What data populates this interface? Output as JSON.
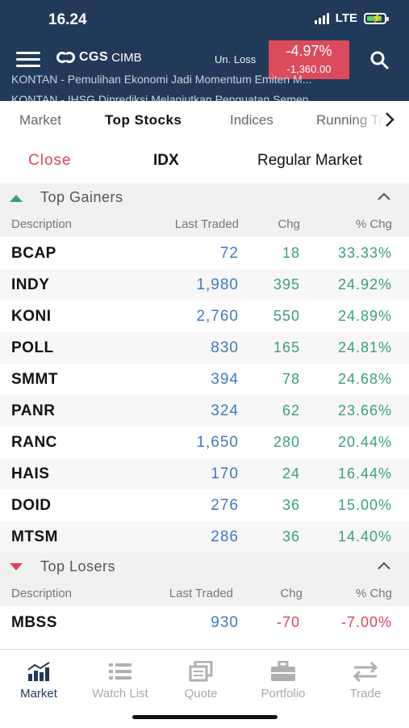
{
  "status_bar": {
    "time": "16.24",
    "network": "LTE"
  },
  "header": {
    "logo_main": "CGS",
    "logo_sub": "CIMB",
    "unrealized_label": "Un. Loss",
    "unrealized_pct": "-4.97%",
    "unrealized_value": "-1,360.00",
    "news": [
      "KONTAN - Pemulihan Ekonomi Jadi Momentum Emiten M...",
      "KONTAN - IHSG Diprediksi Melanjutkan Penguatan Semen..."
    ]
  },
  "tabs": [
    {
      "label": "Market",
      "active": false
    },
    {
      "label": "Top Stocks",
      "active": true
    },
    {
      "label": "Indices",
      "active": false
    },
    {
      "label": "Running Tr",
      "active": false
    }
  ],
  "filters": {
    "status": "Close",
    "exchange": "IDX",
    "market": "Regular Market"
  },
  "columns": {
    "description": "Description",
    "last_traded": "Last Traded",
    "chg": "Chg",
    "pct_chg": "% Chg"
  },
  "top_gainers": {
    "title": "Top Gainers",
    "rows": [
      {
        "symbol": "BCAP",
        "last": "72",
        "chg": "18",
        "pct": "33.33%"
      },
      {
        "symbol": "INDY",
        "last": "1,980",
        "chg": "395",
        "pct": "24.92%"
      },
      {
        "symbol": "KONI",
        "last": "2,760",
        "chg": "550",
        "pct": "24.89%"
      },
      {
        "symbol": "POLL",
        "last": "830",
        "chg": "165",
        "pct": "24.81%"
      },
      {
        "symbol": "SMMT",
        "last": "394",
        "chg": "78",
        "pct": "24.68%"
      },
      {
        "symbol": "PANR",
        "last": "324",
        "chg": "62",
        "pct": "23.66%"
      },
      {
        "symbol": "RANC",
        "last": "1,650",
        "chg": "280",
        "pct": "20.44%"
      },
      {
        "symbol": "HAIS",
        "last": "170",
        "chg": "24",
        "pct": "16.44%"
      },
      {
        "symbol": "DOID",
        "last": "276",
        "chg": "36",
        "pct": "15.00%"
      },
      {
        "symbol": "MTSM",
        "last": "286",
        "chg": "36",
        "pct": "14.40%"
      }
    ]
  },
  "top_losers": {
    "title": "Top Losers",
    "rows": [
      {
        "symbol": "MBSS",
        "last": "930",
        "chg": "-70",
        "pct": "-7.00%"
      }
    ]
  },
  "bottom_nav": [
    {
      "label": "Market",
      "icon": "bar-chart-icon",
      "active": true
    },
    {
      "label": "Watch List",
      "icon": "list-icon",
      "active": false
    },
    {
      "label": "Quote",
      "icon": "quote-window-icon",
      "active": false
    },
    {
      "label": "Portfolio",
      "icon": "briefcase-icon",
      "active": false
    },
    {
      "label": "Trade",
      "icon": "swap-arrows-icon",
      "active": false
    }
  ],
  "colors": {
    "header_bg": "#223a5a",
    "positive": "#3a9e7e",
    "negative": "#d9475d",
    "price": "#3f7ac0",
    "loss_badge": "#dc4b5c"
  }
}
